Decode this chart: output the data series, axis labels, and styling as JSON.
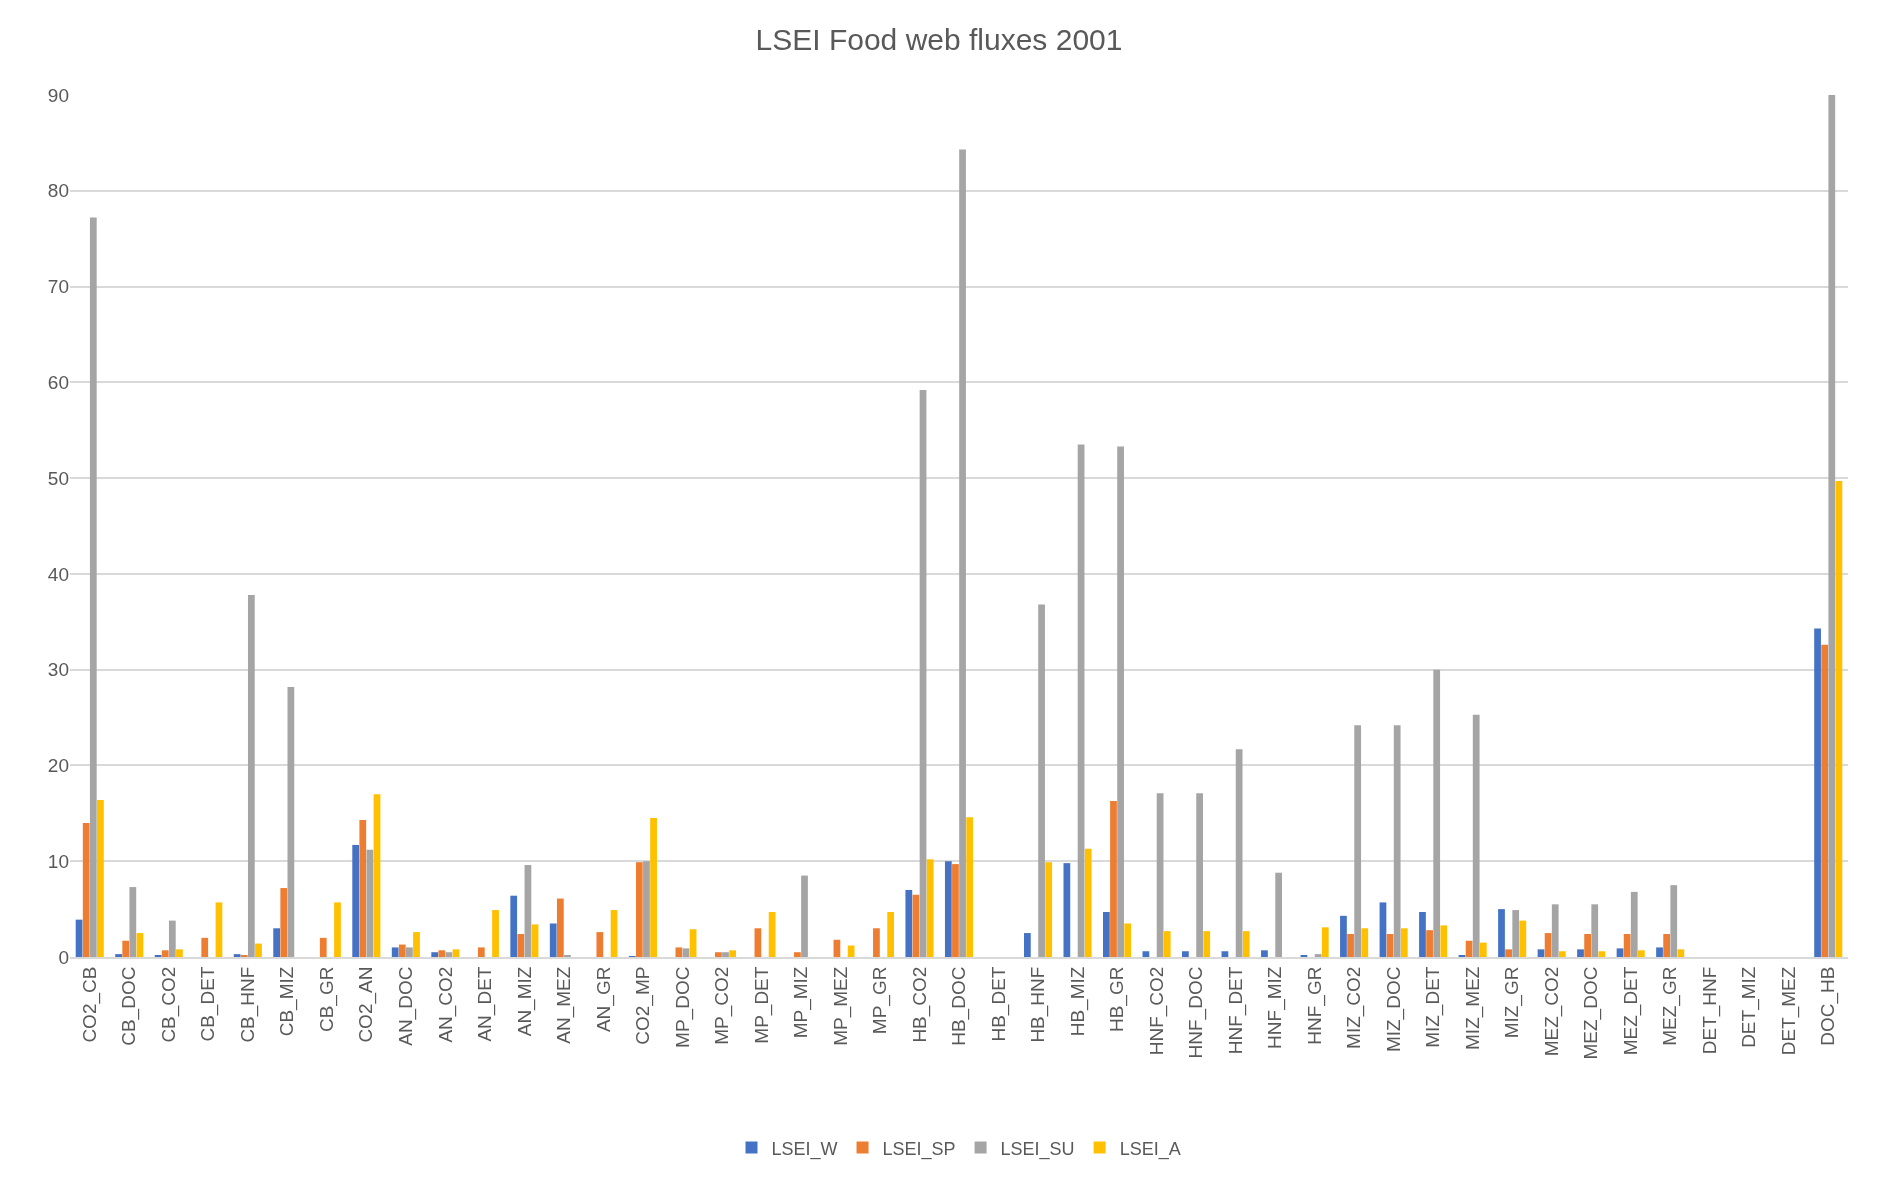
{
  "chart_data": {
    "type": "bar",
    "title": "LSEI Food web fluxes 2001",
    "categories": [
      "CO2_CB",
      "CB_DOC",
      "CB_CO2",
      "CB_DET",
      "CB_HNF",
      "CB_MIZ",
      "CB_GR",
      "CO2_AN",
      "AN_DOC",
      "AN_CO2",
      "AN_DET",
      "AN_MIZ",
      "AN_MEZ",
      "AN_GR",
      "CO2_MP",
      "MP_DOC",
      "MP_CO2",
      "MP_DET",
      "MP_MIZ",
      "MP_MEZ",
      "MP_GR",
      "HB_CO2",
      "HB_DOC",
      "HB_DET",
      "HB_HNF",
      "HB_MIZ",
      "HB_GR",
      "HNF_CO2",
      "HNF_DOC",
      "HNF_DET",
      "HNF_MIZ",
      "HNF_GR",
      "MIZ_CO2",
      "MIZ_DOC",
      "MIZ_DET",
      "MIZ_MEZ",
      "MIZ_GR",
      "MEZ_CO2",
      "MEZ_DOC",
      "MEZ_DET",
      "MEZ_GR",
      "DET_HNF",
      "DET_MIZ",
      "DET_MEZ",
      "DOC_HB"
    ],
    "series": [
      {
        "name": "LSEI_W",
        "color": "#4472c4",
        "values": [
          3.9,
          0.3,
          0.2,
          null,
          0.3,
          3,
          null,
          11.7,
          1,
          0.5,
          null,
          6.4,
          3.5,
          null,
          0.1,
          null,
          null,
          null,
          null,
          null,
          null,
          7,
          10,
          null,
          2.5,
          9.8,
          4.7,
          0.6,
          0.6,
          0.6,
          0.7,
          0.2,
          4.3,
          5.7,
          4.7,
          0.2,
          5,
          0.8,
          0.8,
          0.9,
          1,
          null,
          null,
          null,
          34.3
        ]
      },
      {
        "name": "LSEI_SP",
        "color": "#ed7d31",
        "values": [
          14,
          1.7,
          0.7,
          2,
          0.2,
          7.2,
          2,
          14.3,
          1.3,
          0.7,
          1,
          2.4,
          6.1,
          2.6,
          9.9,
          1,
          0.5,
          3,
          0.5,
          1.8,
          3,
          6.5,
          9.7,
          null,
          null,
          null,
          16.3,
          null,
          null,
          null,
          null,
          null,
          2.4,
          2.4,
          2.8,
          1.7,
          0.8,
          2.5,
          2.4,
          2.4,
          2.4,
          null,
          null,
          null,
          32.6
        ]
      },
      {
        "name": "LSEI_SU",
        "color": "#a5a5a5",
        "values": [
          77.2,
          7.3,
          3.8,
          null,
          37.8,
          28.2,
          null,
          11.2,
          1,
          0.5,
          null,
          9.6,
          0.2,
          null,
          10,
          0.9,
          0.5,
          null,
          8.5,
          null,
          null,
          59.2,
          84.3,
          null,
          36.8,
          53.5,
          53.3,
          17.1,
          17.1,
          21.7,
          8.8,
          0.3,
          24.2,
          24.2,
          30,
          25.3,
          4.9,
          5.5,
          5.5,
          6.8,
          7.5,
          null,
          null,
          null,
          90
        ]
      },
      {
        "name": "LSEI_A",
        "color": "#ffc000",
        "values": [
          16.4,
          2.5,
          0.8,
          5.7,
          1.4,
          null,
          5.7,
          17,
          2.6,
          0.8,
          4.9,
          3.4,
          null,
          4.9,
          14.5,
          2.9,
          0.7,
          4.7,
          null,
          1.2,
          4.7,
          10.2,
          14.6,
          null,
          9.9,
          11.3,
          3.5,
          2.7,
          2.7,
          2.7,
          null,
          3.1,
          3,
          3,
          3.3,
          1.5,
          3.8,
          0.6,
          0.6,
          0.7,
          0.8,
          null,
          null,
          null,
          49.7
        ]
      }
    ],
    "ylim": [
      0,
      90
    ],
    "yticks": [
      0,
      10,
      20,
      30,
      40,
      50,
      60,
      70,
      80,
      90
    ],
    "grid": "y",
    "legend": "bottom"
  }
}
